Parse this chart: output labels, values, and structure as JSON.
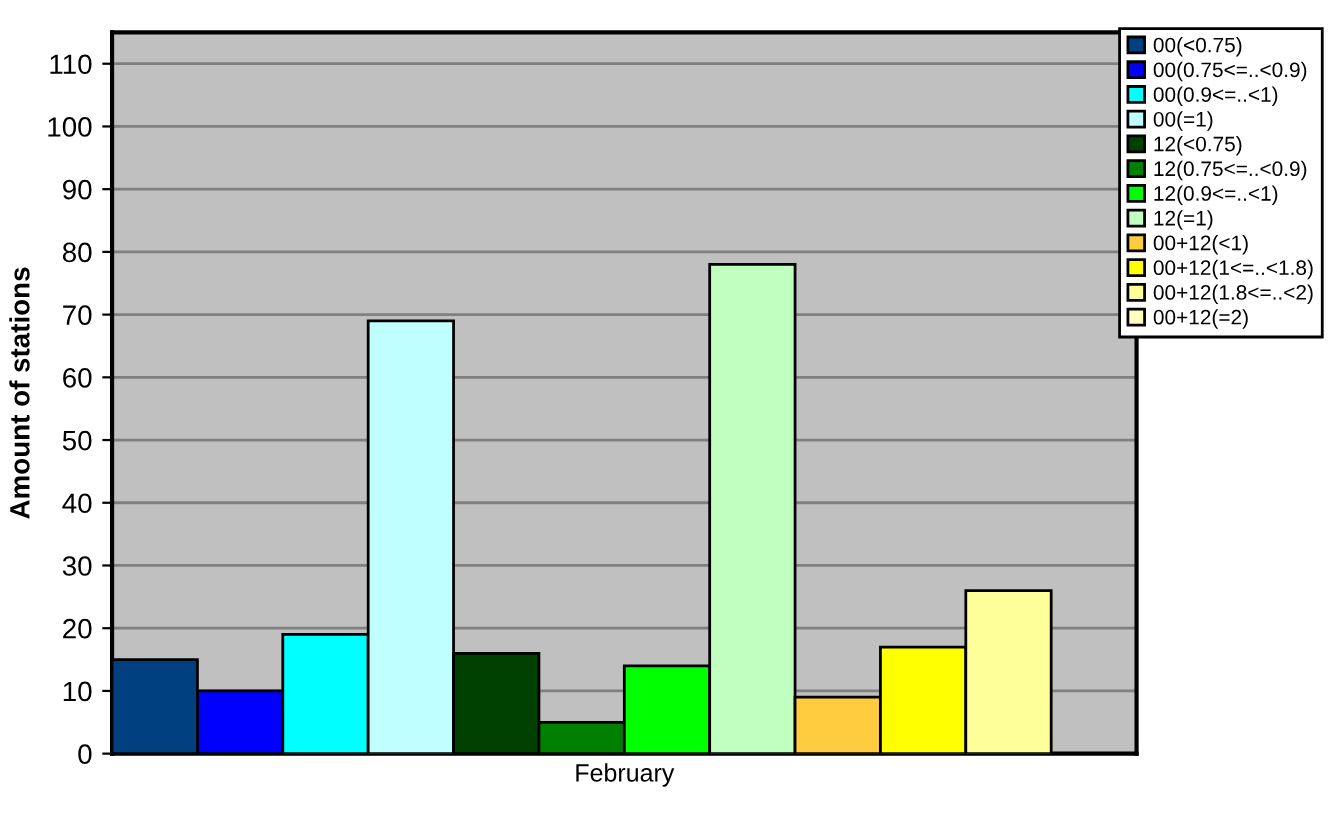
{
  "chart_data": {
    "type": "bar",
    "categories": [
      "February"
    ],
    "ylabel": "Amount of stations",
    "ylim": [
      0,
      115
    ],
    "yticks": [
      0,
      10,
      20,
      30,
      40,
      50,
      60,
      70,
      80,
      90,
      100,
      110
    ],
    "grid": "y",
    "legend": "top right",
    "series": [
      {
        "name": "00(<0.75)",
        "color": "#004080",
        "values": [
          15
        ]
      },
      {
        "name": "00(0.75<=..<0.9)",
        "color": "#0000ff",
        "values": [
          10
        ]
      },
      {
        "name": "00(0.9<=..<1)",
        "color": "#00ffff",
        "values": [
          19
        ]
      },
      {
        "name": "00(=1)",
        "color": "#c0ffff",
        "values": [
          69
        ]
      },
      {
        "name": "12(<0.75)",
        "color": "#004000",
        "values": [
          16
        ]
      },
      {
        "name": "12(0.75<=..<0.9)",
        "color": "#008000",
        "values": [
          5
        ]
      },
      {
        "name": "12(0.9<=..<1)",
        "color": "#00ff00",
        "values": [
          14
        ]
      },
      {
        "name": "12(=1)",
        "color": "#c0ffc0",
        "values": [
          78
        ]
      },
      {
        "name": "00+12(<1)",
        "color": "#ffcc40",
        "values": [
          9
        ]
      },
      {
        "name": "00+12(1<=..<1.8)",
        "color": "#ffff00",
        "values": [
          17
        ]
      },
      {
        "name": "00+12(1.8<=..<2)",
        "color": "#ffff99",
        "values": [
          26
        ]
      },
      {
        "name": "00+12(=2)",
        "color": "#ffffc0",
        "values": [
          null
        ]
      }
    ]
  }
}
